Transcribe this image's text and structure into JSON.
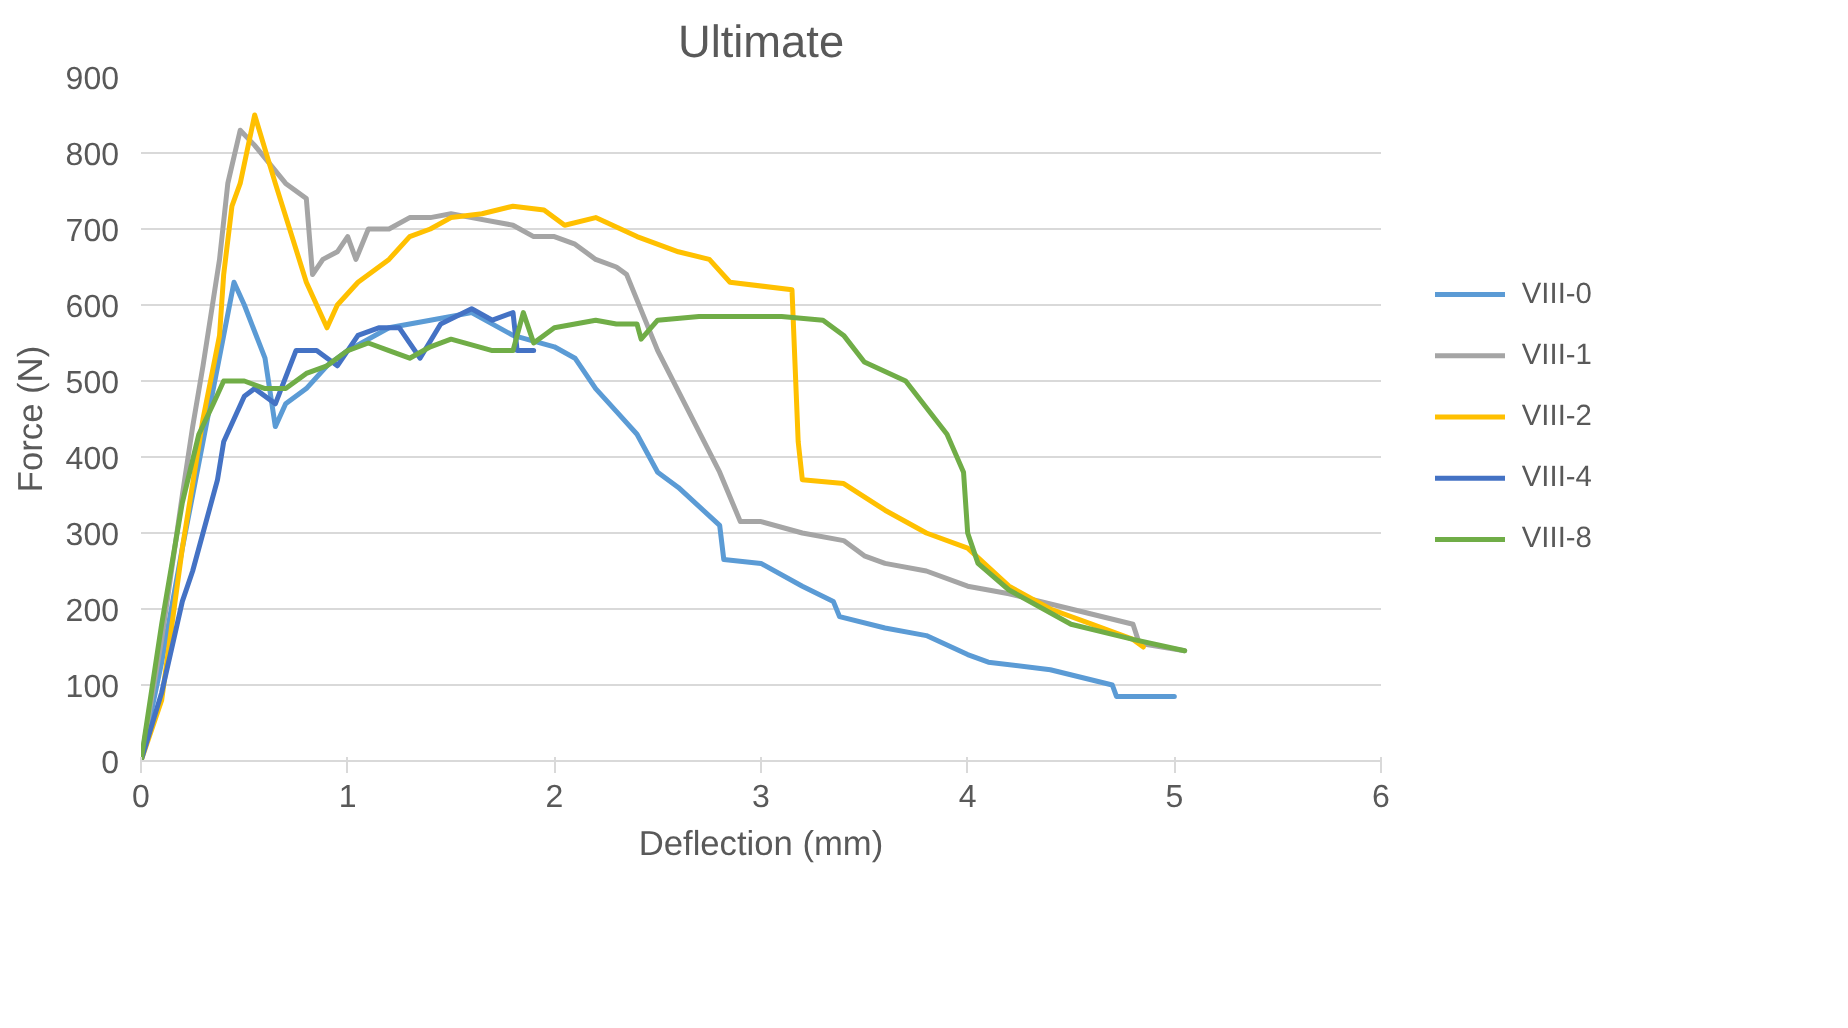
{
  "chart_data": {
    "type": "line",
    "title": "Ultimate",
    "xlabel": "Deflection (mm)",
    "ylabel": "Force (N)",
    "xlim": [
      0,
      6
    ],
    "xticks": [
      0,
      1,
      2,
      3,
      4,
      5,
      6
    ],
    "ylim": [
      0,
      900
    ],
    "yticks": [
      0,
      100,
      200,
      300,
      400,
      500,
      600,
      700,
      800,
      900
    ],
    "grid": "y",
    "legend": "right",
    "marker": "none",
    "line_style": "solid",
    "series": [
      {
        "name": "VIII-0",
        "color": "#5b9bd5",
        "x": [
          0,
          0.1,
          0.2,
          0.3,
          0.4,
          0.45,
          0.5,
          0.6,
          0.65,
          0.7,
          0.8,
          0.9,
          1.0,
          1.2,
          1.4,
          1.6,
          1.8,
          2.0,
          2.1,
          2.2,
          2.3,
          2.4,
          2.5,
          2.6,
          2.8,
          2.82,
          3.0,
          3.2,
          3.35,
          3.38,
          3.6,
          3.8,
          4.0,
          4.1,
          4.4,
          4.7,
          4.72,
          5.0
        ],
        "values": [
          0,
          130,
          280,
          420,
          560,
          630,
          600,
          530,
          440,
          470,
          490,
          520,
          540,
          570,
          580,
          590,
          560,
          545,
          530,
          490,
          460,
          430,
          380,
          360,
          310,
          265,
          260,
          230,
          210,
          190,
          175,
          165,
          140,
          130,
          120,
          100,
          85,
          85
        ]
      },
      {
        "name": "VIII-1",
        "color": "#a5a5a5",
        "x": [
          0,
          0.1,
          0.2,
          0.25,
          0.3,
          0.38,
          0.42,
          0.48,
          0.55,
          0.7,
          0.8,
          0.83,
          0.88,
          0.95,
          1.0,
          1.04,
          1.1,
          1.2,
          1.3,
          1.4,
          1.5,
          1.6,
          1.8,
          1.9,
          2.0,
          2.1,
          2.2,
          2.3,
          2.35,
          2.5,
          2.8,
          2.9,
          3.0,
          3.2,
          3.4,
          3.5,
          3.6,
          3.8,
          4.0,
          4.2,
          4.5,
          4.8,
          4.83,
          5.05
        ],
        "values": [
          0,
          160,
          350,
          440,
          520,
          660,
          760,
          830,
          810,
          760,
          740,
          640,
          660,
          670,
          690,
          660,
          700,
          700,
          715,
          715,
          720,
          715,
          705,
          690,
          690,
          680,
          660,
          650,
          640,
          540,
          380,
          315,
          315,
          300,
          290,
          270,
          260,
          250,
          230,
          220,
          200,
          180,
          155,
          145
        ]
      },
      {
        "name": "VIII-2",
        "color": "#ffc000",
        "x": [
          0,
          0.1,
          0.2,
          0.3,
          0.38,
          0.4,
          0.44,
          0.48,
          0.55,
          0.65,
          0.8,
          0.9,
          0.95,
          1.05,
          1.2,
          1.3,
          1.4,
          1.5,
          1.65,
          1.8,
          1.95,
          2.05,
          2.2,
          2.4,
          2.6,
          2.75,
          2.85,
          3.15,
          3.18,
          3.2,
          3.4,
          3.6,
          3.8,
          4.0,
          4.2,
          4.4,
          4.6,
          4.8,
          4.85
        ],
        "values": [
          0,
          80,
          280,
          450,
          560,
          640,
          730,
          760,
          850,
          760,
          630,
          570,
          600,
          630,
          660,
          690,
          700,
          715,
          720,
          730,
          725,
          705,
          715,
          690,
          670,
          660,
          630,
          620,
          420,
          370,
          365,
          330,
          300,
          280,
          230,
          200,
          180,
          160,
          150
        ]
      },
      {
        "name": "VIII-4",
        "color": "#4472c4",
        "x": [
          0,
          0.1,
          0.2,
          0.25,
          0.3,
          0.37,
          0.4,
          0.45,
          0.5,
          0.55,
          0.65,
          0.75,
          0.85,
          0.95,
          1.05,
          1.15,
          1.25,
          1.35,
          1.45,
          1.6,
          1.7,
          1.8,
          1.82,
          1.9
        ],
        "values": [
          0,
          90,
          210,
          250,
          300,
          370,
          420,
          450,
          480,
          490,
          470,
          540,
          540,
          520,
          560,
          570,
          570,
          530,
          575,
          595,
          580,
          590,
          540,
          540
        ]
      },
      {
        "name": "VIII-8",
        "color": "#70ad47",
        "x": [
          0,
          0.1,
          0.2,
          0.28,
          0.35,
          0.4,
          0.5,
          0.6,
          0.7,
          0.8,
          0.9,
          1.0,
          1.1,
          1.2,
          1.3,
          1.4,
          1.5,
          1.7,
          1.8,
          1.85,
          1.9,
          2.0,
          2.2,
          2.3,
          2.4,
          2.42,
          2.5,
          2.7,
          2.9,
          3.1,
          3.3,
          3.4,
          3.5,
          3.7,
          3.9,
          3.98,
          4.0,
          4.05,
          4.2,
          4.5,
          4.8,
          5.05
        ],
        "values": [
          0,
          180,
          340,
          430,
          470,
          500,
          500,
          490,
          490,
          510,
          520,
          540,
          550,
          540,
          530,
          545,
          555,
          540,
          540,
          590,
          550,
          570,
          580,
          575,
          575,
          555,
          580,
          585,
          585,
          585,
          580,
          560,
          525,
          500,
          430,
          380,
          300,
          260,
          225,
          180,
          160,
          145
        ]
      }
    ]
  }
}
